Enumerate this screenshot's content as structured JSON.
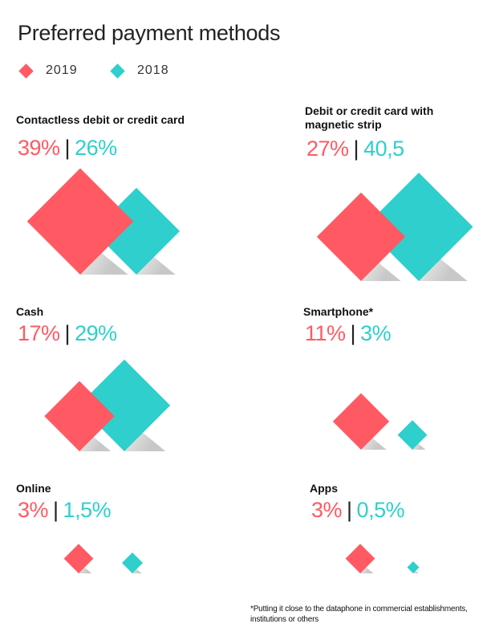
{
  "title": "Preferred payment methods",
  "legend": [
    {
      "label": "2019",
      "color": "#ff5a63"
    },
    {
      "label": "2018",
      "color": "#2ecfcc"
    }
  ],
  "colors": {
    "y2019": "#ff5a63",
    "y2018": "#2ecfcc",
    "separator": "#222222"
  },
  "chart_data": {
    "type": "bar",
    "title": "Preferred payment methods",
    "series_names": [
      "2019",
      "2018"
    ],
    "categories": [
      "Contactless debit or credit card",
      "Debit or credit card with magnetic strip",
      "Cash",
      "Smartphone*",
      "Online",
      "Apps"
    ],
    "series": [
      {
        "name": "2019",
        "values": [
          39,
          27,
          17,
          11,
          3,
          3
        ]
      },
      {
        "name": "2018",
        "values": [
          26,
          40.5,
          29,
          3,
          1.5,
          0.5
        ]
      }
    ],
    "labels": [
      {
        "y2019": "39%",
        "y2018": "26%"
      },
      {
        "y2019": "27%",
        "y2018": "40,5"
      },
      {
        "y2019": "17%",
        "y2018": "29%"
      },
      {
        "y2019": "11%",
        "y2018": "3%"
      },
      {
        "y2019": "3%",
        "y2018": "1,5%"
      },
      {
        "y2019": "3%",
        "y2018": "0,5%"
      }
    ],
    "name_lines": [
      [
        "Contactless debit or credit card"
      ],
      [
        "Debit or credit card with",
        "magnetic strip"
      ],
      [
        "Cash"
      ],
      [
        "Smartphone*"
      ],
      [
        "Online"
      ],
      [
        "Apps"
      ]
    ]
  },
  "footnote": "*Putting it close to the dataphone in commercial establishments, institutions or others"
}
